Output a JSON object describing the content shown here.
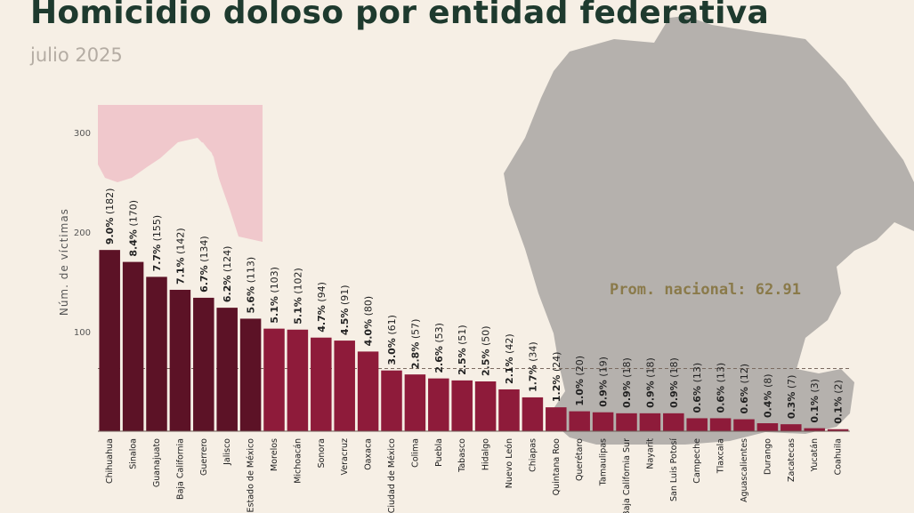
{
  "title": "Homicidio doloso por entidad federativa",
  "subtitle": "julio 2025",
  "colors": {
    "background": "#f6efe5",
    "title": "#1e3a2e",
    "top_bars": "#5c1226",
    "bars": "#8e1b3a",
    "map": "#b5b1ad",
    "highlight_region": "#f0c8cc",
    "average_text": "#8a7a4a"
  },
  "chart_data": {
    "type": "bar",
    "title": "Homicidio doloso por entidad federativa",
    "subtitle": "julio 2025",
    "ylabel": "Núm. de víctimas",
    "ylim": [
      0,
      300
    ],
    "yticks": [
      100,
      200,
      300
    ],
    "grid": false,
    "average": {
      "label": "Prom. nacional: 62.91",
      "value": 62.91
    },
    "categories": [
      "Chihuahua",
      "Sinaloa",
      "Guanajuato",
      "Baja California",
      "Guerrero",
      "Jalisco",
      "Estado de México",
      "Morelos",
      "Michoacán",
      "Sonora",
      "Veracruz",
      "Oaxaca",
      "Ciudad de México",
      "Colima",
      "Puebla",
      "Tabasco",
      "Hidalgo",
      "Nuevo León",
      "Chiapas",
      "Quintana Roo",
      "Querétaro",
      "Tamaulipas",
      "Baja California Sur",
      "Nayarit",
      "San Luis Potosí",
      "Campeche",
      "Tlaxcala",
      "Aguascalientes",
      "Durango",
      "Zacatecas",
      "Yucatán",
      "Coahuila"
    ],
    "values": [
      182,
      170,
      155,
      142,
      134,
      124,
      113,
      103,
      102,
      94,
      91,
      80,
      61,
      57,
      53,
      51,
      50,
      42,
      34,
      24,
      20,
      19,
      18,
      18,
      18,
      13,
      13,
      12,
      8,
      7,
      3,
      2
    ],
    "percent_labels": [
      "9.0%",
      "8.4%",
      "7.7%",
      "7.1%",
      "6.7%",
      "6.2%",
      "5.6%",
      "5.1%",
      "5.1%",
      "4.7%",
      "4.5%",
      "4.0%",
      "3.0%",
      "2.8%",
      "2.6%",
      "2.5%",
      "2.5%",
      "2.1%",
      "1.7%",
      "1.2%",
      "1.0%",
      "0.9%",
      "0.9%",
      "0.9%",
      "0.9%",
      "0.6%",
      "0.6%",
      "0.6%",
      "0.4%",
      "0.3%",
      "0.1%",
      "0.1%"
    ],
    "highlighted_top": 7
  }
}
